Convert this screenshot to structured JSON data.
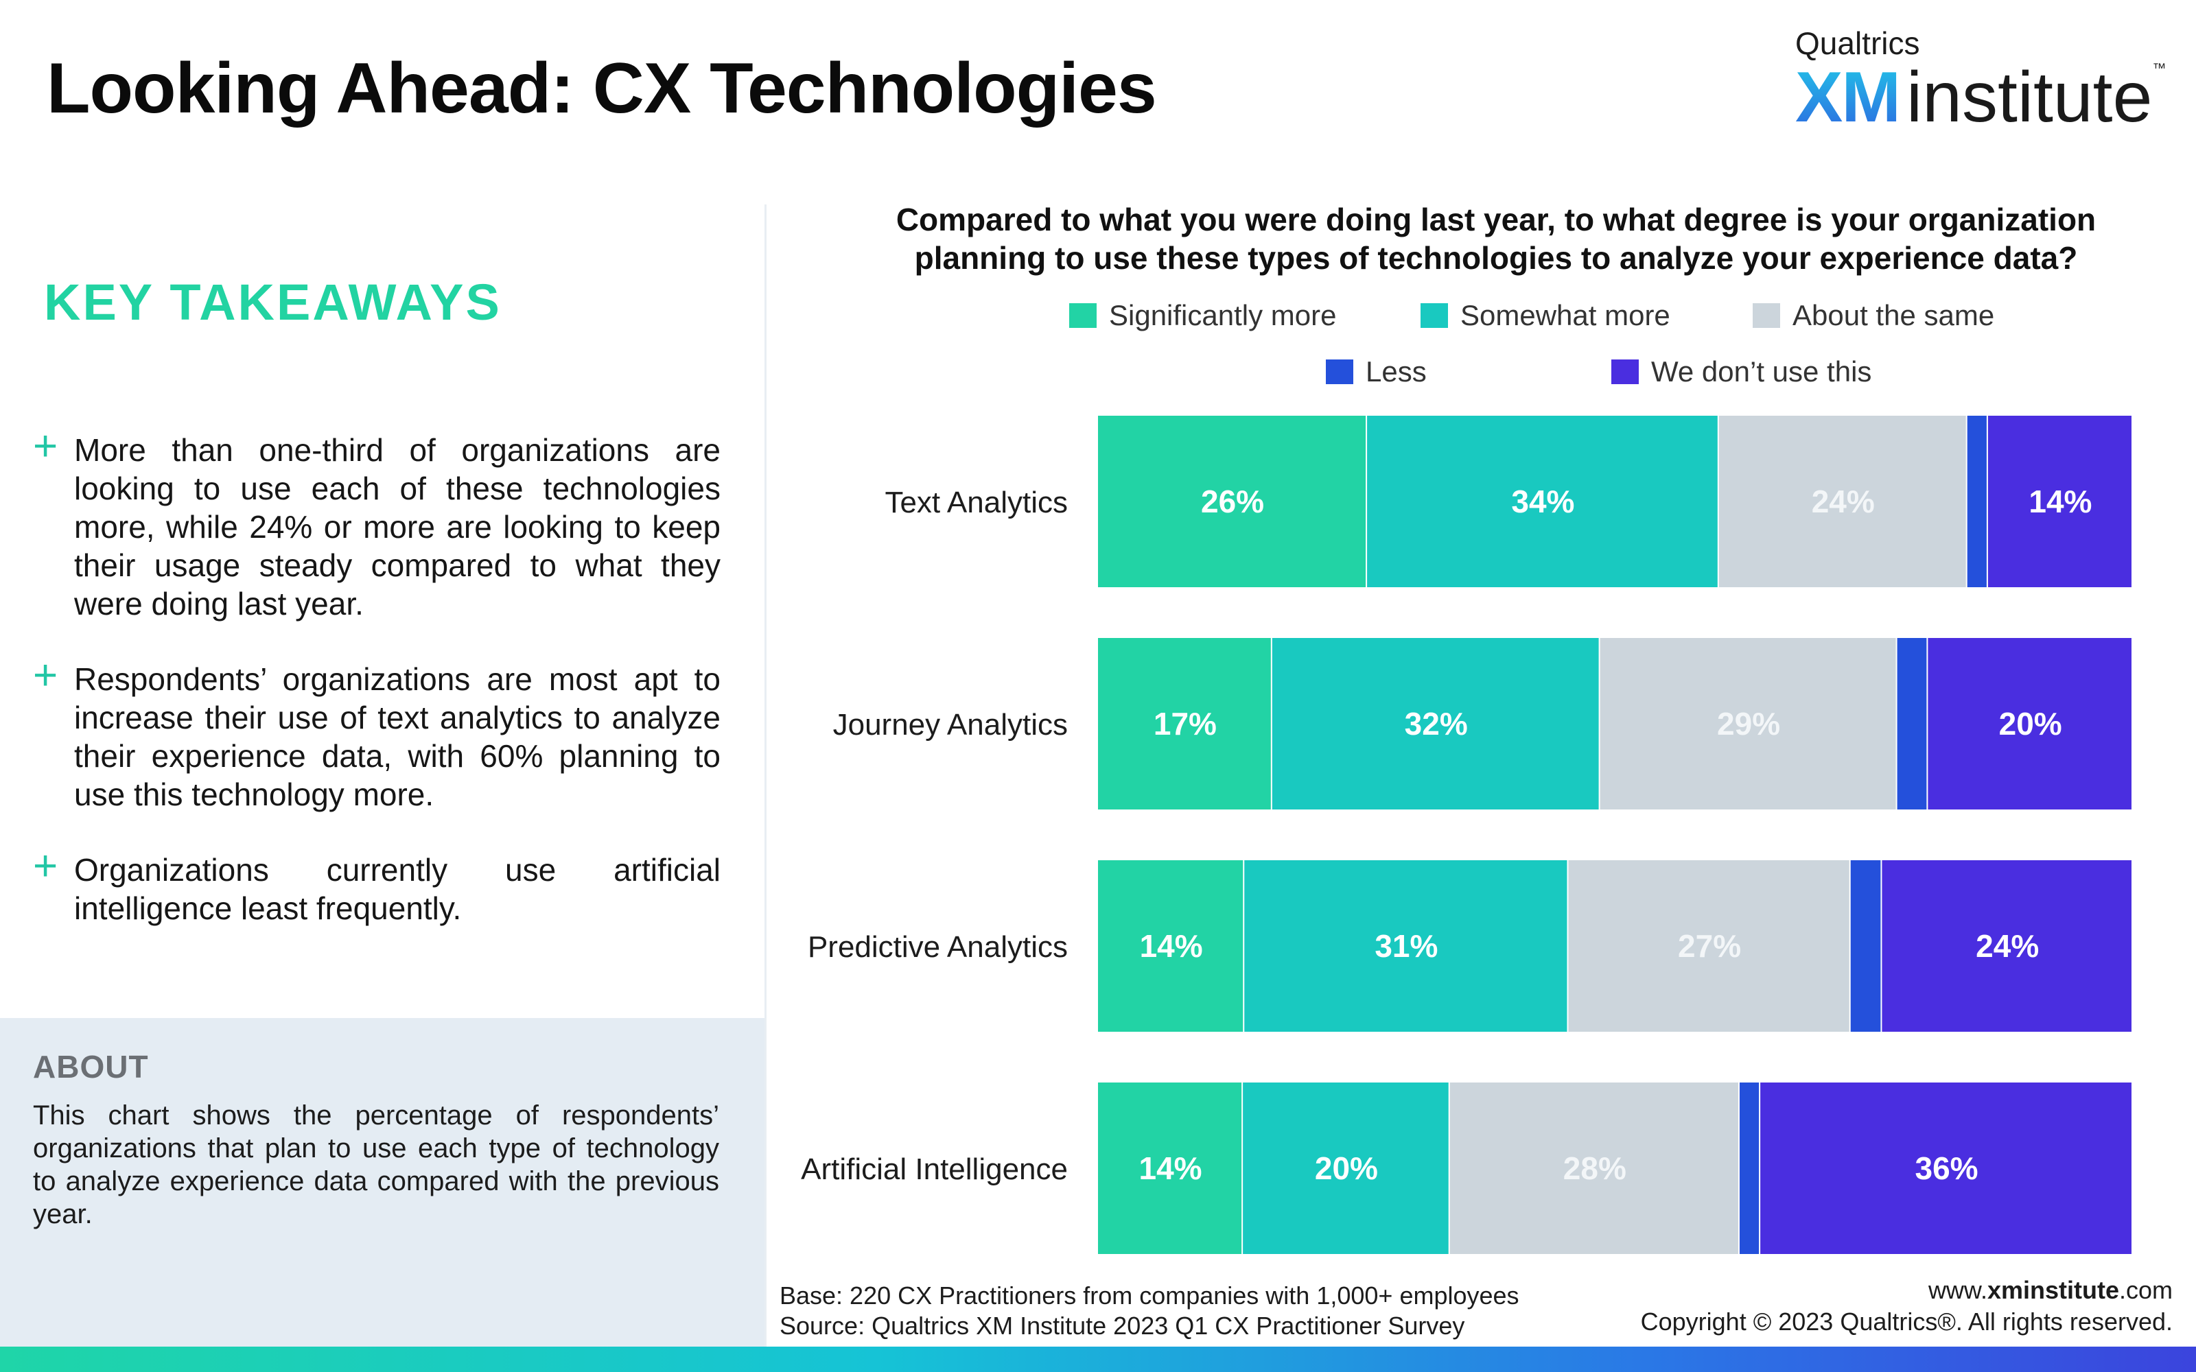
{
  "header": {
    "title": "Looking Ahead: CX Technologies",
    "logo_top": "Qualtrics",
    "logo_xm": "XM",
    "logo_institute": "institute",
    "logo_tm": "™"
  },
  "takeaways": {
    "heading": "KEY TAKEAWAYS",
    "bullet_symbol": "+",
    "items": [
      "More than one-third of organizations are looking to use each of these technologies more, while 24% or more are looking to keep their usage steady compared to what they were doing last year.",
      "Respondents’ organizations are most apt to increase their use of text analytics to analyze their experience data, with 60% planning to use this technology more.",
      "Organizations currently use artificial intelligence least frequently."
    ]
  },
  "about": {
    "heading": "ABOUT",
    "text": "This chart shows the percentage of respondents’ organizations that plan to use each type of technology to analyze experience data compared with the previous year."
  },
  "question": {
    "line1": "Compared to what you were doing last year, to what degree is your organization",
    "line2": "planning to use these types of technologies to analyze your experience data?"
  },
  "legend": [
    {
      "label": "Significantly more",
      "color": "#22d3a5"
    },
    {
      "label": "Somewhat more",
      "color": "#19c9c0"
    },
    {
      "label": "About the same",
      "color": "#ccd5dc"
    },
    {
      "label": "Less",
      "color": "#2450db"
    },
    {
      "label": "We don’t use this",
      "color": "#4a2ee0"
    }
  ],
  "chart_data": {
    "type": "bar",
    "orientation": "horizontal",
    "stacked": true,
    "categories": [
      "Text Analytics",
      "Journey Analytics",
      "Predictive Analytics",
      "Artificial Intelligence"
    ],
    "series": [
      {
        "name": "Significantly more",
        "values": [
          26,
          17,
          14,
          14
        ],
        "color": "#22d3a5"
      },
      {
        "name": "Somewhat more",
        "values": [
          34,
          32,
          31,
          20
        ],
        "color": "#19c9c0"
      },
      {
        "name": "About the same",
        "values": [
          24,
          29,
          27,
          28
        ],
        "color": "#ccd5dc"
      },
      {
        "name": "Less",
        "values": [
          2,
          3,
          3,
          2
        ],
        "color": "#2450db"
      },
      {
        "name": "We don’t use this",
        "values": [
          14,
          20,
          24,
          36
        ],
        "color": "#4a2ee0"
      }
    ],
    "data_labels": [
      [
        "26%",
        "34%",
        "24%",
        "",
        "14%"
      ],
      [
        "17%",
        "32%",
        "29%",
        "",
        "20%"
      ],
      [
        "14%",
        "31%",
        "27%",
        "",
        "24%"
      ],
      [
        "14%",
        "20%",
        "28%",
        "",
        "36%"
      ]
    ],
    "xlim": [
      0,
      100
    ],
    "grid": false
  },
  "footer": {
    "base": "Base: 220 CX Practitioners from companies with 1,000+ employees",
    "source": "Source: Qualtrics XM Institute 2023 Q1 CX Practitioner Survey",
    "url_prefix": "www.",
    "url_bold": "xminstitute",
    "url_suffix": ".com",
    "copyright": "Copyright © 2023 Qualtrics®. All rights reserved."
  }
}
